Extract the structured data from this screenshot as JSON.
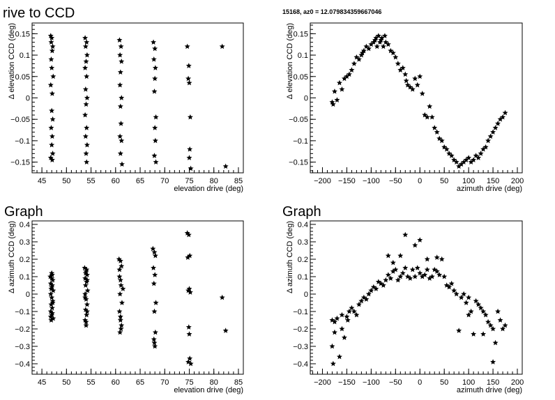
{
  "panel_titles": [
    "rive to CCD",
    "15168, az0 = 12.079834359667046",
    "Graph",
    "Graph"
  ],
  "chart_data": [
    {
      "type": "scatter",
      "title": "rive to CCD",
      "xlabel": "elevation drive (deg)",
      "ylabel": "Δ elevation CCD (deg)",
      "xlim": [
        43,
        86
      ],
      "ylim": [
        -0.175,
        0.175
      ],
      "xticks": [
        45,
        50,
        55,
        60,
        65,
        70,
        75,
        80,
        85
      ],
      "yticks": [
        -0.15,
        -0.1,
        -0.05,
        0,
        0.05,
        0.1,
        0.15
      ],
      "ytick_labels": [
        "−0.15",
        "−0.1",
        "−0.05",
        "0",
        "0.05",
        "0.1",
        "0.15"
      ],
      "x": [
        46.8,
        47.0,
        46.9,
        47.2,
        47.1,
        46.9,
        47.0,
        47.3,
        46.8,
        47.1,
        47.0,
        47.2,
        46.9,
        47.1,
        47.0,
        47.2,
        46.8,
        47.1,
        53.8,
        54.1,
        53.9,
        54.2,
        54.0,
        53.8,
        54.1,
        53.9,
        54.2,
        54.0,
        53.8,
        54.1,
        53.9,
        54.2,
        54.0,
        54.1,
        60.8,
        61.1,
        60.9,
        61.2,
        61.0,
        60.9,
        61.2,
        61.0,
        61.1,
        60.9,
        61.2,
        61.0,
        61.3,
        67.7,
        68.0,
        67.8,
        68.1,
        68.0,
        67.9,
        68.2,
        68.0,
        68.1,
        67.9,
        68.2,
        74.6,
        74.9,
        74.8,
        75.0,
        75.2,
        75.1,
        75.0,
        75.3,
        81.7,
        82.4
      ],
      "y": [
        0.145,
        0.14,
        0.13,
        0.12,
        0.11,
        0.09,
        0.07,
        0.05,
        0.03,
        0.01,
        -0.03,
        -0.05,
        -0.07,
        -0.09,
        -0.11,
        -0.13,
        -0.14,
        -0.145,
        0.14,
        0.13,
        0.12,
        0.1,
        0.085,
        0.07,
        0.05,
        0.02,
        0.0,
        -0.015,
        -0.04,
        -0.07,
        -0.09,
        -0.11,
        -0.13,
        -0.15,
        0.135,
        0.12,
        0.1,
        0.085,
        0.06,
        0.03,
        0.0,
        -0.02,
        -0.06,
        -0.09,
        -0.1,
        -0.13,
        -0.155,
        0.13,
        0.115,
        0.09,
        0.07,
        0.045,
        0.015,
        -0.045,
        -0.07,
        -0.1,
        -0.135,
        -0.15,
        0.12,
        0.075,
        0.045,
        0.035,
        -0.045,
        -0.12,
        -0.14,
        -0.165,
        0.12,
        -0.16
      ]
    },
    {
      "type": "scatter",
      "title": "15168, az0 = 12.079834359667046",
      "xlabel": "azimuth drive (deg)",
      "ylabel": "Δ elevation CCD (deg)",
      "xlim": [
        -225,
        210
      ],
      "ylim": [
        -0.175,
        0.175
      ],
      "xticks": [
        -200,
        -150,
        -100,
        -50,
        0,
        50,
        100,
        150,
        200
      ],
      "xtick_labels": [
        "−200",
        "−150",
        "−100",
        "−50",
        "0",
        "50",
        "100",
        "150",
        "200"
      ],
      "yticks": [
        -0.15,
        -0.1,
        -0.05,
        0,
        0.05,
        0.1,
        0.15
      ],
      "ytick_labels": [
        "−0.15",
        "−0.1",
        "−0.05",
        "0",
        "0.05",
        "0.1",
        "0.15"
      ],
      "x": [
        -180,
        -178,
        -175,
        -170,
        -165,
        -160,
        -155,
        -150,
        -145,
        -140,
        -135,
        -130,
        -125,
        -120,
        -118,
        -115,
        -110,
        -105,
        -100,
        -95,
        -92,
        -90,
        -88,
        -85,
        -82,
        -80,
        -78,
        -75,
        -72,
        -70,
        -65,
        -60,
        -55,
        -50,
        -45,
        -40,
        -35,
        -30,
        -28,
        -25,
        -20,
        -15,
        -10,
        -5,
        0,
        5,
        10,
        15,
        20,
        25,
        30,
        35,
        40,
        45,
        50,
        55,
        60,
        65,
        70,
        75,
        80,
        85,
        90,
        95,
        100,
        105,
        110,
        115,
        120,
        125,
        130,
        135,
        140,
        145,
        150,
        155,
        160,
        165,
        170,
        175
      ],
      "y": [
        -0.01,
        -0.015,
        0.015,
        -0.005,
        0.035,
        0.02,
        0.045,
        0.05,
        0.055,
        0.065,
        0.08,
        0.095,
        0.09,
        0.1,
        0.105,
        0.11,
        0.12,
        0.115,
        0.125,
        0.13,
        0.135,
        0.14,
        0.12,
        0.145,
        0.13,
        0.135,
        0.14,
        0.12,
        0.145,
        0.13,
        0.125,
        0.11,
        0.105,
        0.095,
        0.08,
        0.065,
        0.07,
        0.055,
        0.04,
        0.03,
        0.025,
        0.02,
        0.045,
        0.03,
        0.05,
        0.01,
        -0.04,
        -0.045,
        -0.02,
        -0.045,
        -0.07,
        -0.08,
        -0.095,
        -0.1,
        -0.115,
        -0.12,
        -0.13,
        -0.135,
        -0.145,
        -0.15,
        -0.16,
        -0.155,
        -0.15,
        -0.145,
        -0.14,
        -0.15,
        -0.145,
        -0.135,
        -0.14,
        -0.13,
        -0.12,
        -0.115,
        -0.1,
        -0.09,
        -0.08,
        -0.07,
        -0.06,
        -0.05,
        -0.045,
        -0.035
      ]
    },
    {
      "type": "scatter",
      "title": "Graph",
      "xlabel": "elevation drive (deg)",
      "ylabel": "Δ azimuth CCD (deg)",
      "xlim": [
        43,
        86
      ],
      "ylim": [
        -0.46,
        0.42
      ],
      "xticks": [
        45,
        50,
        55,
        60,
        65,
        70,
        75,
        80,
        85
      ],
      "yticks": [
        -0.4,
        -0.3,
        -0.2,
        -0.1,
        0,
        0.1,
        0.2,
        0.3,
        0.4
      ],
      "ytick_labels": [
        "−0.4",
        "−0.3",
        "−0.2",
        "−0.1",
        "0",
        "0.1",
        "0.2",
        "0.3",
        "0.4"
      ],
      "x": [
        46.7,
        47.0,
        47.2,
        46.8,
        47.1,
        46.9,
        47.3,
        46.8,
        47.0,
        47.2,
        46.9,
        47.1,
        46.8,
        47.0,
        47.3,
        46.9,
        47.1,
        47.0,
        46.8,
        47.2,
        47.0,
        47.1,
        53.7,
        54.0,
        54.2,
        53.8,
        54.1,
        53.9,
        54.3,
        53.8,
        54.0,
        54.2,
        53.9,
        54.1,
        53.8,
        54.0,
        54.2,
        53.9,
        54.1,
        54.0,
        53.8,
        54.2,
        60.7,
        61.0,
        61.2,
        60.8,
        61.1,
        60.9,
        61.3,
        60.8,
        61.0,
        61.2,
        60.9,
        61.1,
        60.8,
        61.0,
        61.5,
        61.0,
        67.6,
        67.9,
        68.1,
        67.7,
        68.0,
        67.8,
        68.2,
        67.9,
        68.1,
        67.8,
        68.0,
        67.9,
        74.6,
        74.9,
        75.1,
        74.7,
        75.0,
        74.8,
        75.2,
        74.9,
        75.0,
        75.1,
        74.8,
        75.3,
        81.7,
        82.4
      ],
      "y": [
        0.1,
        0.12,
        0.08,
        0.06,
        0.05,
        0.03,
        0.02,
        0.0,
        -0.02,
        -0.04,
        -0.06,
        -0.08,
        -0.1,
        -0.12,
        -0.14,
        -0.15,
        0.11,
        0.09,
        -0.13,
        -0.05,
        0.04,
        -0.11,
        0.15,
        0.13,
        0.11,
        0.09,
        0.07,
        0.05,
        0.02,
        0.0,
        -0.03,
        -0.06,
        -0.09,
        -0.12,
        -0.15,
        -0.18,
        -0.1,
        0.12,
        0.14,
        -0.16,
        -0.02,
        0.08,
        0.2,
        0.19,
        0.16,
        0.1,
        0.05,
        0.0,
        -0.05,
        -0.1,
        -0.15,
        -0.18,
        -0.22,
        -0.2,
        0.14,
        0.08,
        0.03,
        -0.13,
        0.26,
        0.24,
        0.22,
        0.15,
        0.11,
        0.06,
        -0.05,
        -0.1,
        -0.22,
        -0.26,
        -0.3,
        -0.28,
        0.35,
        0.34,
        0.22,
        0.21,
        0.03,
        0.02,
        0.01,
        -0.19,
        -0.23,
        -0.37,
        -0.39,
        -0.4,
        -0.02,
        -0.21
      ]
    },
    {
      "type": "scatter",
      "title": "Graph",
      "xlabel": "azimuth drive (deg)",
      "ylabel": "Δ azimuth CCD (deg)",
      "xlim": [
        -225,
        210
      ],
      "ylim": [
        -0.46,
        0.42
      ],
      "xticks": [
        -200,
        -150,
        -100,
        -50,
        0,
        50,
        100,
        150,
        200
      ],
      "xtick_labels": [
        "−200",
        "−150",
        "−100",
        "−50",
        "0",
        "50",
        "100",
        "150",
        "200"
      ],
      "yticks": [
        -0.4,
        -0.3,
        -0.2,
        -0.1,
        0,
        0.1,
        0.2,
        0.3,
        0.4
      ],
      "ytick_labels": [
        "−0.4",
        "−0.3",
        "−0.2",
        "−0.1",
        "0",
        "0.1",
        "0.2",
        "0.3",
        "0.4"
      ],
      "x": [
        -180,
        -180,
        -178,
        -175,
        -175,
        -170,
        -165,
        -160,
        -160,
        -155,
        -150,
        -148,
        -145,
        -140,
        -135,
        -130,
        -125,
        -120,
        -115,
        -110,
        -105,
        -100,
        -95,
        -90,
        -85,
        -80,
        -75,
        -70,
        -65,
        -65,
        -60,
        -55,
        -55,
        -50,
        -45,
        -40,
        -40,
        -35,
        -30,
        -30,
        -25,
        -20,
        -15,
        -10,
        -10,
        -5,
        0,
        0,
        5,
        10,
        15,
        15,
        20,
        25,
        30,
        35,
        35,
        40,
        45,
        50,
        55,
        60,
        65,
        70,
        75,
        80,
        85,
        90,
        95,
        100,
        100,
        105,
        110,
        115,
        120,
        125,
        130,
        130,
        135,
        140,
        145,
        150,
        150,
        155,
        160,
        165,
        170,
        175
      ],
      "y": [
        -0.15,
        -0.3,
        -0.4,
        -0.22,
        -0.16,
        -0.14,
        -0.36,
        -0.12,
        -0.2,
        -0.25,
        -0.13,
        -0.15,
        -0.1,
        -0.08,
        -0.1,
        -0.12,
        -0.06,
        -0.04,
        -0.02,
        -0.03,
        0.0,
        0.02,
        0.04,
        0.03,
        0.07,
        0.06,
        0.05,
        0.08,
        0.11,
        0.22,
        0.09,
        0.13,
        0.18,
        0.14,
        0.08,
        0.1,
        0.22,
        0.12,
        0.34,
        0.15,
        0.1,
        0.09,
        0.14,
        0.28,
        0.1,
        0.15,
        0.12,
        0.31,
        0.1,
        0.11,
        0.14,
        0.2,
        0.09,
        0.1,
        0.14,
        0.13,
        0.21,
        0.11,
        0.2,
        0.1,
        0.05,
        0.04,
        0.06,
        0.02,
        0.0,
        -0.21,
        -0.02,
        0.0,
        -0.05,
        -0.02,
        -0.12,
        -0.1,
        -0.23,
        -0.04,
        -0.06,
        -0.08,
        -0.1,
        -0.23,
        -0.12,
        -0.16,
        -0.18,
        -0.39,
        -0.2,
        -0.28,
        -0.1,
        -0.15,
        -0.2,
        -0.18
      ]
    }
  ]
}
